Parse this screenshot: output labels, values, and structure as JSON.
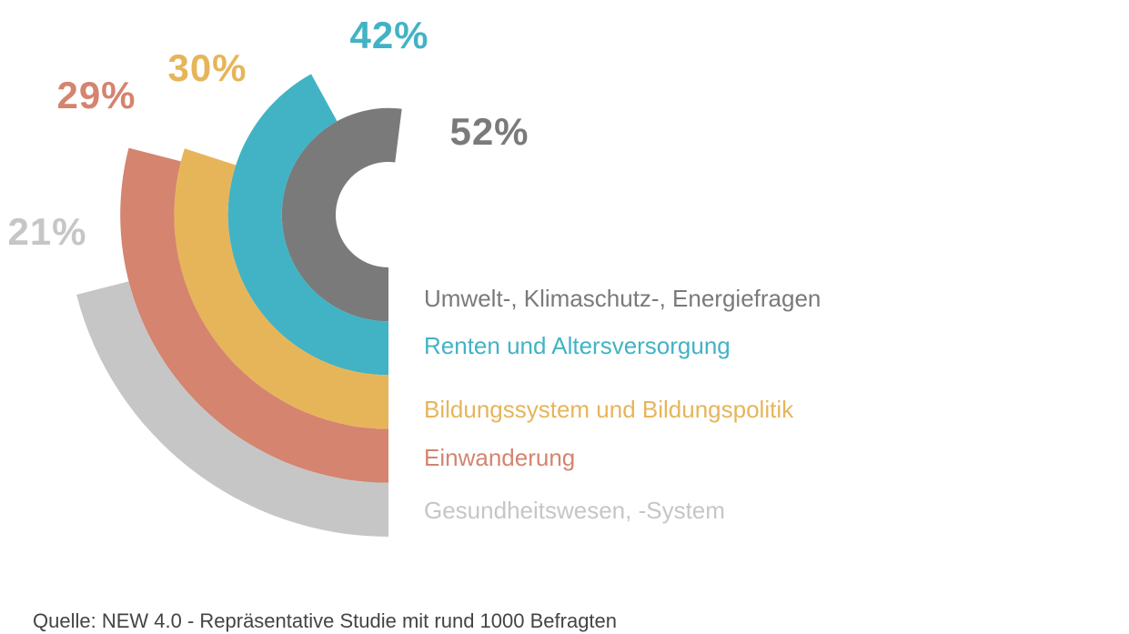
{
  "chart_data": {
    "type": "radial-bar",
    "series": [
      {
        "name": "Umwelt-, Klimaschutz-, Energiefragen",
        "color": "#7a7a7a",
        "values": [
          52
        ],
        "value_labels": [
          "52%"
        ]
      },
      {
        "name": "Renten und Altersversorgung",
        "color": "#42b3c4",
        "values": [
          42
        ],
        "value_labels": [
          "42%"
        ]
      },
      {
        "name": "Bildungssystem und Bildungspolitik",
        "color": "#e6b55a",
        "values": [
          30
        ],
        "value_labels": [
          "30%"
        ]
      },
      {
        "name": "Einwanderung",
        "color": "#d4846f",
        "values": [
          29
        ],
        "value_labels": [
          "29%"
        ]
      },
      {
        "name": "Gesundheitswesen, -System",
        "color": "#c6c6c6",
        "values": [
          21
        ],
        "value_labels": [
          "21%"
        ]
      }
    ],
    "source": "Quelle: NEW 4.0 - Repräsentative Studie mit rund 1000 Befragten"
  }
}
